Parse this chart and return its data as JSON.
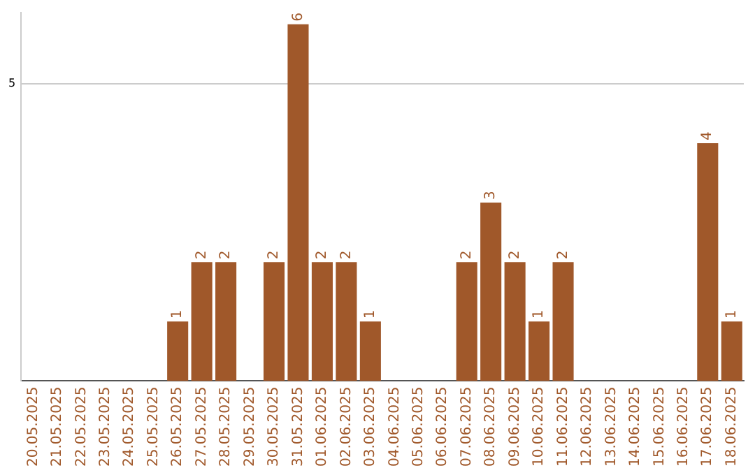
{
  "chart_data": {
    "type": "bar",
    "categories": [
      "20.05.2025",
      "21.05.2025",
      "22.05.2025",
      "23.05.2025",
      "24.05.2025",
      "25.05.2025",
      "26.05.2025",
      "27.05.2025",
      "28.05.2025",
      "29.05.2025",
      "30.05.2025",
      "31.05.2025",
      "01.06.2025",
      "02.06.2025",
      "03.06.2025",
      "04.06.2025",
      "05.06.2025",
      "06.06.2025",
      "07.06.2025",
      "08.06.2025",
      "09.06.2025",
      "10.06.2025",
      "11.06.2025",
      "12.06.2025",
      "13.06.2025",
      "14.06.2025",
      "15.06.2025",
      "16.06.2025",
      "17.06.2025",
      "18.06.2025"
    ],
    "values": [
      0,
      0,
      0,
      0,
      0,
      0,
      1,
      2,
      2,
      0,
      2,
      6,
      2,
      2,
      1,
      0,
      0,
      0,
      2,
      3,
      2,
      1,
      2,
      0,
      0,
      0,
      0,
      0,
      4,
      1
    ],
    "value_labels": [
      null,
      null,
      null,
      null,
      null,
      null,
      "1",
      "2",
      "2",
      null,
      "2",
      "6",
      "2",
      "2",
      "1",
      null,
      null,
      null,
      "2",
      "3",
      "2",
      "1",
      "2",
      null,
      null,
      null,
      null,
      null,
      "4",
      "1"
    ],
    "color": "#a0582a",
    "ylim": [
      0,
      6.2
    ],
    "yticks": [
      5
    ],
    "grid": "y",
    "legend": false
  }
}
